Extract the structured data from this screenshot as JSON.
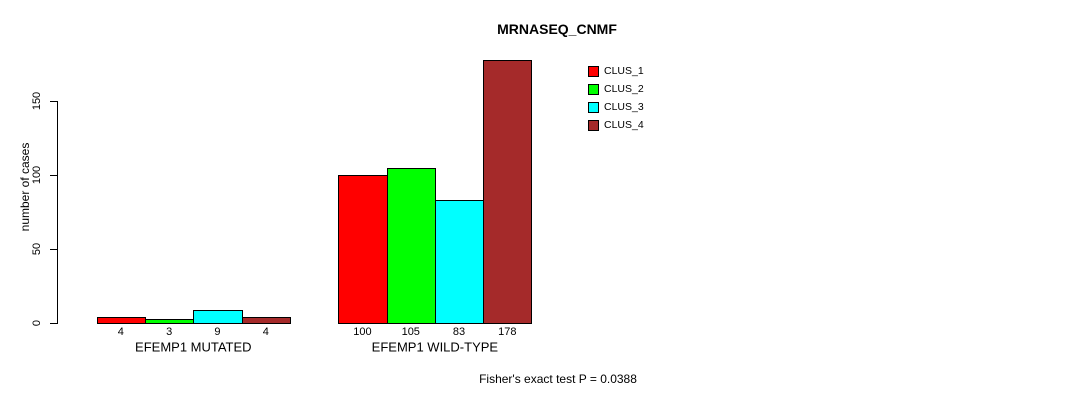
{
  "chart_data": {
    "type": "bar",
    "title": "MRNASEQ_CNMF",
    "ylabel": "number of cases",
    "xlabel": "",
    "ylim": [
      0,
      150
    ],
    "yticks": [
      0,
      50,
      100,
      150
    ],
    "grid": false,
    "legend_position": "top-right",
    "categories": [
      "EFEMP1 MUTATED",
      "EFEMP1 WILD-TYPE"
    ],
    "series": [
      {
        "name": "CLUS_1",
        "color": "#FF0000",
        "values": [
          4,
          100
        ]
      },
      {
        "name": "CLUS_2",
        "color": "#00FF00",
        "values": [
          3,
          105
        ]
      },
      {
        "name": "CLUS_3",
        "color": "#00FFFF",
        "values": [
          9,
          83
        ]
      },
      {
        "name": "CLUS_4",
        "color": "#A52A2A",
        "values": [
          4,
          178
        ]
      }
    ],
    "bar_value_labels": {
      "EFEMP1 MUTATED": [
        4,
        3,
        9,
        4
      ],
      "EFEMP1 WILD-TYPE": [
        100,
        105,
        83,
        178
      ]
    }
  },
  "annotation": {
    "fisher_text": "Fisher's exact test P = 0.0388"
  }
}
